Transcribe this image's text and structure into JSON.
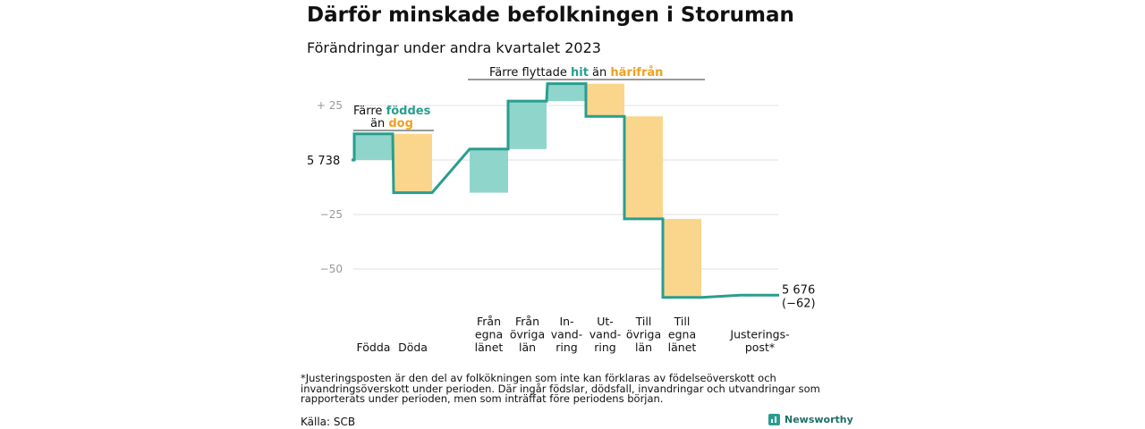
{
  "title": "Därför minskade befolkningen i Storuman",
  "subtitle": "Förändringar under andra kvartalet 2023",
  "footnote": "*Justeringsposten är den del av folkökningen som inte kan förklaras av födelseöverskott och invandringsöverskott under perioden. Där ingår födslar, dödsfall, invandringar och utvandringar som rapporterats under perioden, men som inträffat före periodens början.",
  "source": "Källa: SCB",
  "brand": "Newsworthy",
  "colors": {
    "increase": "#8fd5cb",
    "decrease": "#fad68c",
    "line": "#2a9d8f",
    "teal_text": "#2a9d8f",
    "orange_text": "#f0a020",
    "grid": "#e0e0e0"
  },
  "annotations": {
    "births": {
      "line1_prefix": "Färre ",
      "line1_highlight": "föddes",
      "line2_prefix": "än ",
      "line2_highlight": "dog"
    },
    "migration": {
      "prefix": "Färre flyttade ",
      "highlight1": "hit",
      "middle": " än ",
      "highlight2": "härifrån"
    }
  },
  "chart_data": {
    "type": "waterfall",
    "title": "Därför minskade befolkningen i Storuman",
    "subtitle": "Förändringar under andra kvartalet 2023",
    "start_value": 5738,
    "start_label": "5 738",
    "end_value": 5676,
    "end_label": "5 676",
    "end_change_label": "(−62)",
    "y_ticks": [
      {
        "value": 25,
        "label": "+ 25"
      },
      {
        "value": 0,
        "label": ""
      },
      {
        "value": -25,
        "label": "−25"
      },
      {
        "value": -50,
        "label": "−50"
      }
    ],
    "ylim": [
      -63,
      40
    ],
    "grid": true,
    "items": [
      {
        "category": "Födda",
        "label_lines": [
          "Födda"
        ],
        "value": 12,
        "group": "births"
      },
      {
        "category": "Döda",
        "label_lines": [
          "Döda"
        ],
        "value": -27,
        "group": "births"
      },
      {
        "category": "Från egna länet",
        "label_lines": [
          "Från",
          "egna",
          "länet"
        ],
        "value": 20,
        "group": "migration"
      },
      {
        "category": "Från övriga län",
        "label_lines": [
          "Från",
          "övriga",
          "län"
        ],
        "value": 22,
        "group": "migration"
      },
      {
        "category": "Invandring",
        "label_lines": [
          "In-",
          "vand-",
          "ring"
        ],
        "value": 8,
        "group": "migration"
      },
      {
        "category": "Utvandring",
        "label_lines": [
          "Ut-",
          "vand-",
          "ring"
        ],
        "value": -15,
        "group": "migration"
      },
      {
        "category": "Till övriga län",
        "label_lines": [
          "Till",
          "övriga",
          "län"
        ],
        "value": -47,
        "group": "migration"
      },
      {
        "category": "Till egna länet",
        "label_lines": [
          "Till",
          "egna",
          "länet"
        ],
        "value": -36,
        "group": "migration"
      },
      {
        "category": "Justeringspost*",
        "label_lines": [
          "Justerings-",
          "post*"
        ],
        "value": 1,
        "group": "adjustment"
      }
    ]
  }
}
